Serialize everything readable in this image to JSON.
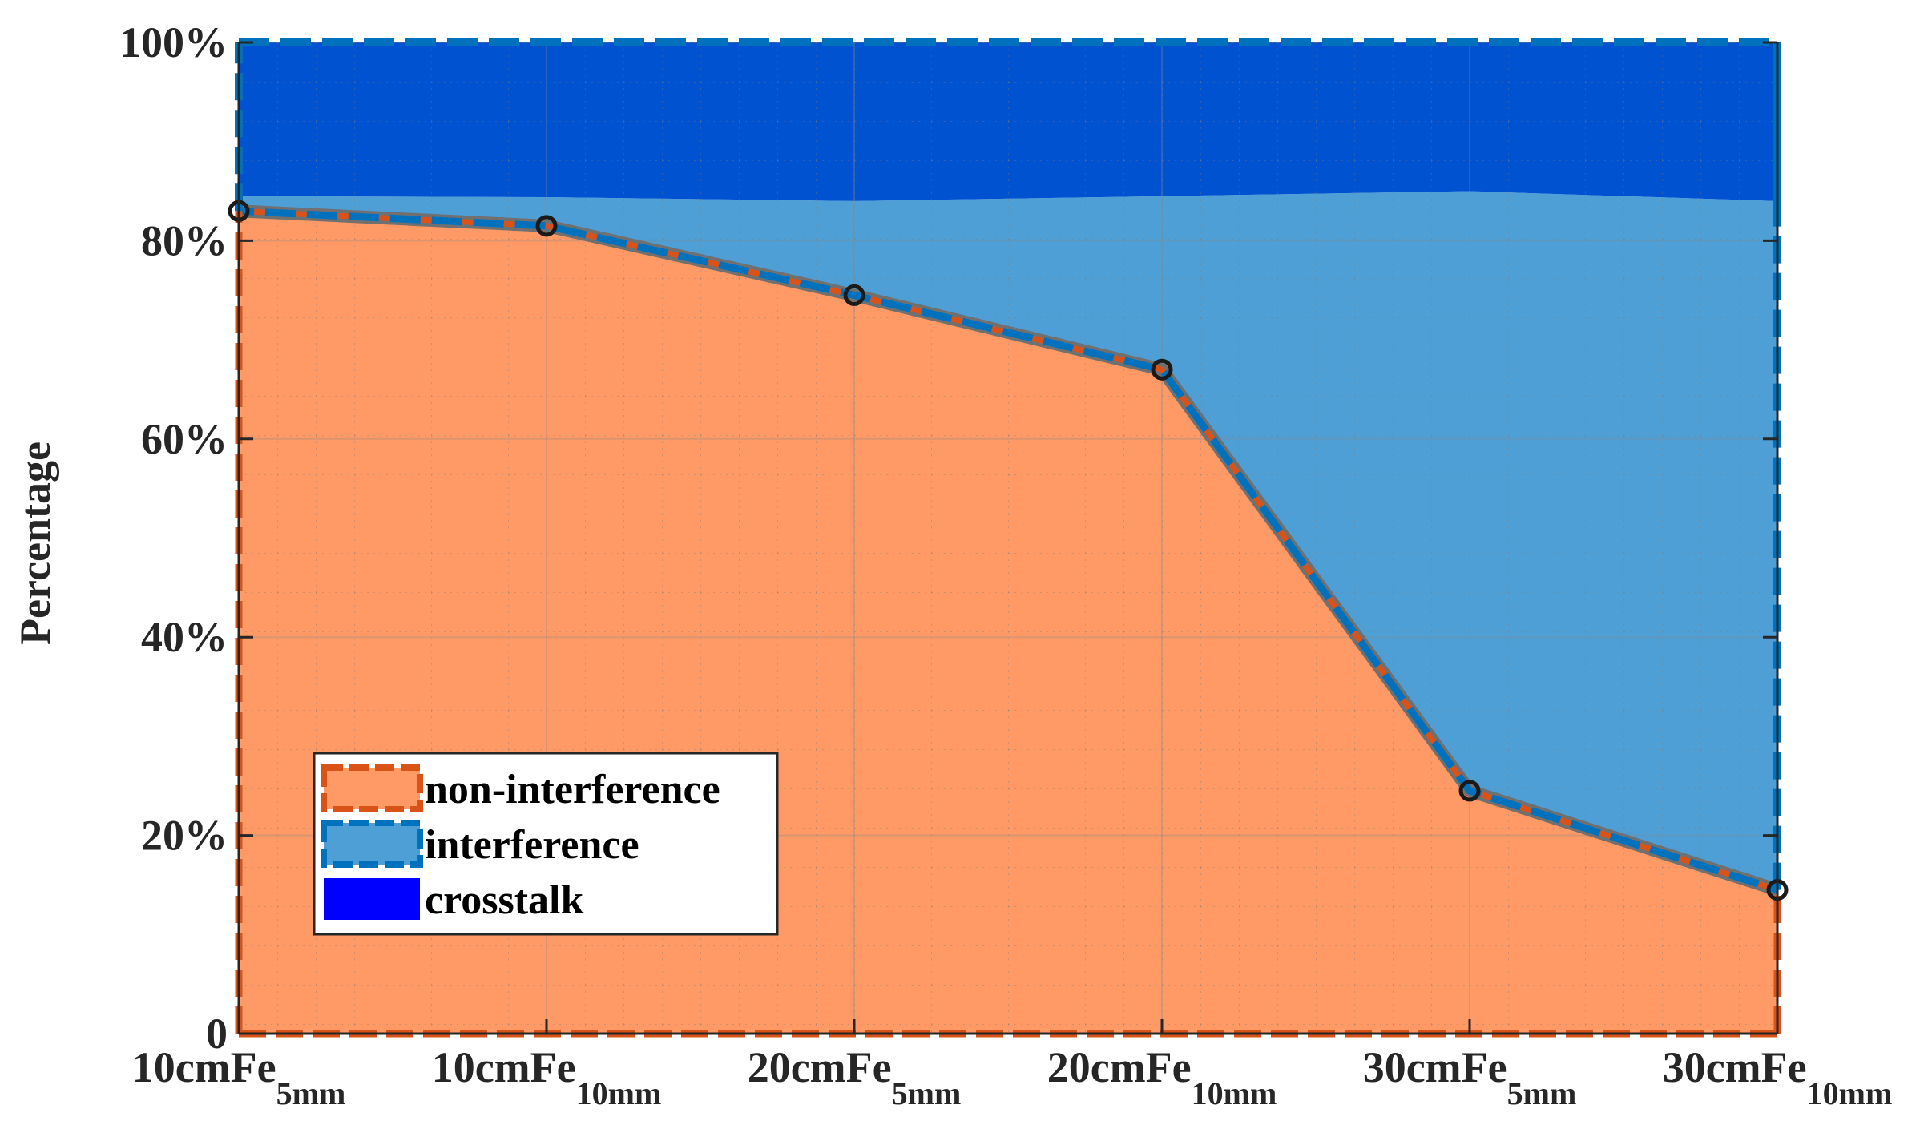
{
  "chart_data": {
    "type": "area",
    "stacked": true,
    "categories": [
      {
        "base": "10cmFe",
        "sub": "5mm"
      },
      {
        "base": "10cmFe",
        "sub": "10mm"
      },
      {
        "base": "20cmFe",
        "sub": "5mm"
      },
      {
        "base": "20cmFe",
        "sub": "10mm"
      },
      {
        "base": "30cmFe",
        "sub": "5mm"
      },
      {
        "base": "30cmFe",
        "sub": "10mm"
      }
    ],
    "series": [
      {
        "name": "non-interference",
        "values": [
          83,
          81.5,
          74.5,
          67,
          24.5,
          14.5
        ],
        "color": "#ff9966",
        "edge": "#d95319"
      },
      {
        "name": "interference",
        "values": [
          1.5,
          2.9,
          9.5,
          17.5,
          60.5,
          69.5
        ],
        "color": "#4d9fd6",
        "edge": "#0072bd"
      },
      {
        "name": "crosstalk",
        "values": [
          15.5,
          15.6,
          16.0,
          15.5,
          15.0,
          16.0
        ],
        "color": "#0052d0",
        "edge": "#0072bd"
      }
    ],
    "ylabel": "Percentage",
    "ylim": [
      0,
      100
    ],
    "yticks": [
      0,
      20,
      40,
      60,
      80,
      100
    ],
    "ytick_labels": [
      "0",
      "20%",
      "40%",
      "60%",
      "80%",
      "100%"
    ],
    "legend": {
      "placement": "lower-left",
      "entries": [
        "non-interference",
        "interference",
        "crosstalk"
      ],
      "swatch_colors": [
        "#ff9966",
        "#4d9fd6",
        "#0000ff"
      ]
    },
    "grid": true
  }
}
